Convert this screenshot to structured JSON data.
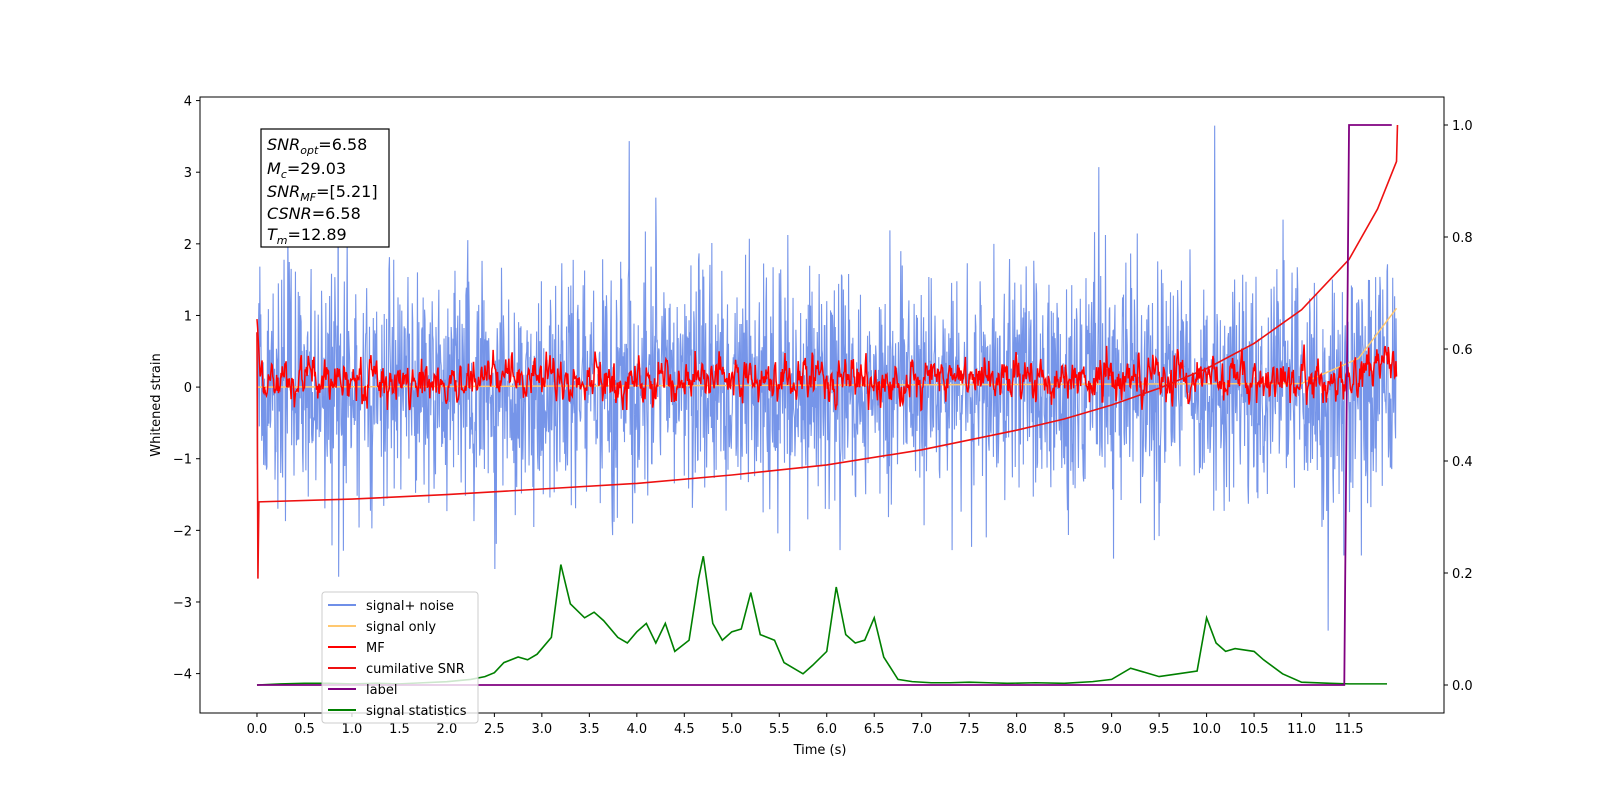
{
  "chart_data": {
    "type": "line",
    "xlabel": "Time (s)",
    "ylabel": "Whitened strain",
    "xlim": [
      -0.6,
      12.5
    ],
    "ylim": [
      -4.55,
      4.05
    ],
    "y2lim": [
      -0.05,
      1.05
    ],
    "x_ticks": [
      "0.0",
      "0.5",
      "1.0",
      "1.5",
      "2.0",
      "2.5",
      "3.0",
      "3.5",
      "4.0",
      "4.5",
      "5.0",
      "5.5",
      "6.0",
      "6.5",
      "7.0",
      "7.5",
      "8.0",
      "8.5",
      "9.0",
      "9.5",
      "10.0",
      "10.5",
      "11.0",
      "11.5"
    ],
    "y_ticks": [
      "4",
      "3",
      "2",
      "1",
      "0",
      "−1",
      "−2",
      "−3",
      "−4"
    ],
    "y2_ticks": [
      "1.0",
      "0.8",
      "0.6",
      "0.4",
      "0.2",
      "0.0"
    ],
    "info_box": {
      "snr_opt": {
        "base": "SNR",
        "sub": "opt",
        "value": "=6.58"
      },
      "mc": {
        "base": "M",
        "sub": "c",
        "value": "=29.03"
      },
      "snr_mf": {
        "base": "SNR",
        "sub": "MF",
        "value": "=[5.21]"
      },
      "csnr": {
        "base": "CSNR",
        "sub": "",
        "value": "=6.58"
      },
      "tm": {
        "base": "T",
        "sub": "m",
        "value": "=12.89"
      }
    },
    "legend_position": "lower-left",
    "legend": [
      "signal+ noise",
      "signal only",
      "MF",
      "cumilative SNR",
      "label",
      "signal statistics"
    ],
    "colors": {
      "signal_noise": "#6f8fe8",
      "signal_only": "#ffc870",
      "mf": "#ff0000",
      "cumulative_snr": "#ee1111",
      "label": "#800080",
      "signal_statistics": "#008000"
    },
    "series": [
      {
        "name": "signal+ noise",
        "axis": "left",
        "note": "dense noise",
        "envelope": [
          -1.8,
          1.8
        ],
        "extremes": [
          -3.4,
          3.65
        ]
      },
      {
        "name": "signal only",
        "axis": "left",
        "x": [
          0.0,
          11.0,
          11.6,
          12.0
        ],
        "y": [
          0.0,
          0.05,
          0.4,
          1.1
        ]
      },
      {
        "name": "MF",
        "axis": "left",
        "note": "noisy trace",
        "envelope": [
          -0.3,
          0.6
        ]
      },
      {
        "name": "cumilative SNR",
        "axis": "right",
        "x": [
          0.0,
          0.01,
          0.02,
          1.0,
          2.0,
          3.0,
          4.0,
          5.0,
          6.0,
          7.0,
          8.0,
          8.5,
          9.0,
          9.5,
          10.0,
          10.5,
          11.0,
          11.5,
          11.8,
          12.0,
          12.01
        ],
        "y": [
          0.63,
          0.19,
          0.327,
          0.332,
          0.34,
          0.35,
          0.36,
          0.375,
          0.393,
          0.42,
          0.455,
          0.475,
          0.5,
          0.53,
          0.565,
          0.61,
          0.67,
          0.76,
          0.85,
          0.935,
          1.0
        ]
      },
      {
        "name": "label",
        "axis": "right",
        "x": [
          0.0,
          11.45,
          11.5,
          11.95
        ],
        "y": [
          0.0,
          0.0,
          1.0,
          1.0
        ]
      },
      {
        "name": "signal statistics",
        "axis": "right",
        "x": [
          0.0,
          0.25,
          0.5,
          0.75,
          1.0,
          1.25,
          1.5,
          1.75,
          2.0,
          2.25,
          2.4,
          2.5,
          2.6,
          2.75,
          2.85,
          2.95,
          3.1,
          3.2,
          3.3,
          3.45,
          3.55,
          3.65,
          3.8,
          3.9,
          4.0,
          4.1,
          4.2,
          4.3,
          4.4,
          4.55,
          4.65,
          4.7,
          4.8,
          4.9,
          5.0,
          5.1,
          5.2,
          5.3,
          5.45,
          5.55,
          5.65,
          5.75,
          5.85,
          6.0,
          6.1,
          6.2,
          6.3,
          6.4,
          6.5,
          6.6,
          6.75,
          6.9,
          7.1,
          7.3,
          7.5,
          7.7,
          7.9,
          8.2,
          8.5,
          8.8,
          9.0,
          9.2,
          9.5,
          9.7,
          9.9,
          10.0,
          10.1,
          10.2,
          10.3,
          10.5,
          10.6,
          10.8,
          11.0,
          11.3,
          11.5,
          11.6,
          11.9
        ],
        "y": [
          0.0,
          0.002,
          0.003,
          0.003,
          0.002,
          0.003,
          0.002,
          0.004,
          0.006,
          0.01,
          0.015,
          0.022,
          0.04,
          0.05,
          0.045,
          0.055,
          0.085,
          0.215,
          0.145,
          0.12,
          0.13,
          0.115,
          0.085,
          0.075,
          0.095,
          0.11,
          0.075,
          0.11,
          0.06,
          0.08,
          0.19,
          0.23,
          0.11,
          0.08,
          0.095,
          0.1,
          0.165,
          0.09,
          0.08,
          0.04,
          0.03,
          0.02,
          0.035,
          0.06,
          0.175,
          0.09,
          0.075,
          0.08,
          0.12,
          0.05,
          0.01,
          0.006,
          0.004,
          0.004,
          0.005,
          0.004,
          0.003,
          0.004,
          0.003,
          0.006,
          0.01,
          0.03,
          0.015,
          0.02,
          0.025,
          0.12,
          0.075,
          0.06,
          0.065,
          0.06,
          0.045,
          0.02,
          0.005,
          0.003,
          0.002,
          0.002,
          0.002
        ]
      }
    ]
  }
}
